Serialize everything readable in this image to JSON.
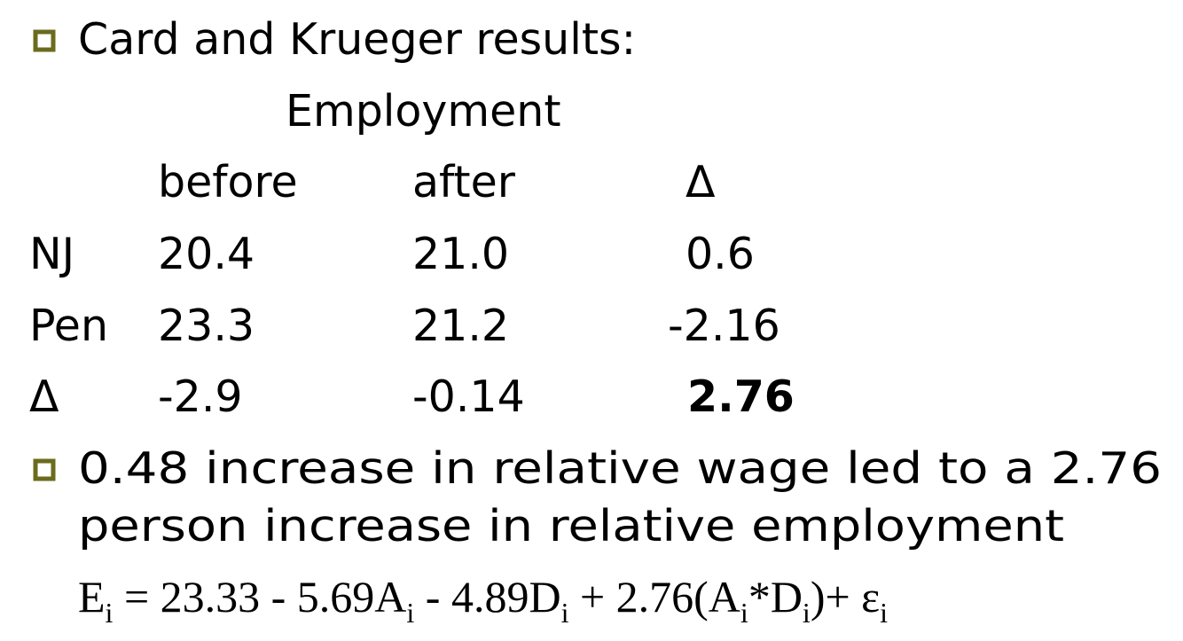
{
  "bullets": [
    "Card and Krueger results:",
    "0.48 increase in relative wage led to a 2.76 person increase in relative employment"
  ],
  "table": {
    "heading": "Employment",
    "columns": [
      "before",
      "after",
      "Δ"
    ],
    "rows": [
      [
        "NJ",
        "20.4",
        "21.0",
        "0.6"
      ],
      [
        "Pen",
        "23.3",
        "21.2",
        "-2.16"
      ],
      [
        "Δ",
        "-2.9",
        "-0.14",
        "2.76"
      ]
    ]
  },
  "equation": [
    [
      "E",
      "i"
    ],
    [
      " = 23.33 - 5.69A",
      "i"
    ],
    [
      " - 4.89D",
      "i"
    ],
    [
      " + 2.76(A",
      "i"
    ],
    [
      "*D",
      "i"
    ],
    [
      ")+ ε",
      "i"
    ]
  ]
}
